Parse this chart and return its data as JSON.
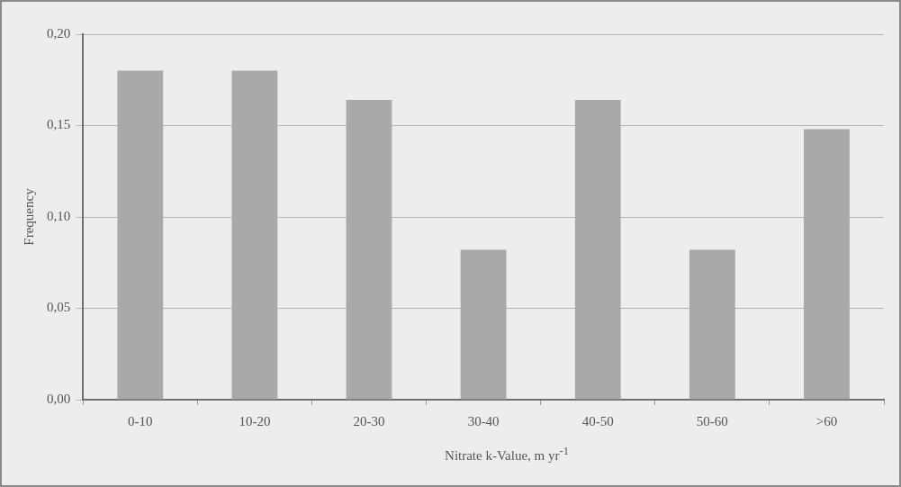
{
  "chart_data": {
    "type": "bar",
    "xlabel": "Nitrate k-Value, m yr$^{-1}$",
    "ylabel": "Frequency",
    "categories": [
      "0-10",
      "10-20",
      "20-30",
      "30-40",
      "40-50",
      "50-60",
      ">60"
    ],
    "values": [
      0.18,
      0.18,
      0.164,
      0.082,
      0.164,
      0.082,
      0.148
    ],
    "color": "#a9a9a9",
    "ylim": [
      0,
      0.2
    ],
    "yticks": [
      {
        "value": 0,
        "label": "0,00"
      },
      {
        "value": 0.05,
        "label": "0,05"
      },
      {
        "value": 0.1,
        "label": "0,10"
      },
      {
        "value": 0.15,
        "label": "0,15"
      },
      {
        "value": 0.2,
        "label": "0,20"
      }
    ],
    "grid": "y"
  }
}
